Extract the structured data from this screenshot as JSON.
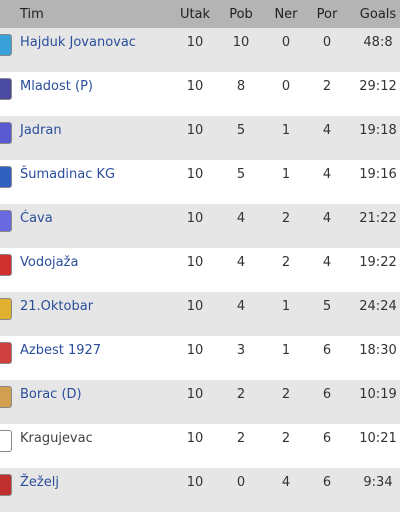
{
  "table": {
    "header": [
      "Tim",
      "Utak",
      "Pob",
      "Ner",
      "Por",
      "Goals"
    ],
    "rows": [
      [
        "Hajduk Jovanovac",
        10,
        10,
        0,
        0,
        "48:8"
      ],
      [
        "Mladost (P)",
        10,
        8,
        0,
        2,
        "29:12"
      ],
      [
        "Jadran",
        10,
        5,
        1,
        4,
        "19:18"
      ],
      [
        "Šumadinac KG",
        10,
        5,
        1,
        4,
        "19:16"
      ],
      [
        "Ćava",
        10,
        4,
        2,
        4,
        "21:22"
      ],
      [
        "Vodojaža",
        10,
        4,
        2,
        4,
        "19:22"
      ],
      [
        "21.Oktobar",
        10,
        4,
        1,
        5,
        "24:24"
      ],
      [
        "Azbest 1927",
        10,
        3,
        1,
        6,
        "18:30"
      ],
      [
        "Borac (D)",
        10,
        2,
        2,
        6,
        "10:19"
      ],
      [
        "Kragujevac",
        10,
        2,
        2,
        6,
        "10:21"
      ],
      [
        "Žeželj",
        10,
        0,
        4,
        6,
        "9:34"
      ]
    ]
  }
}
